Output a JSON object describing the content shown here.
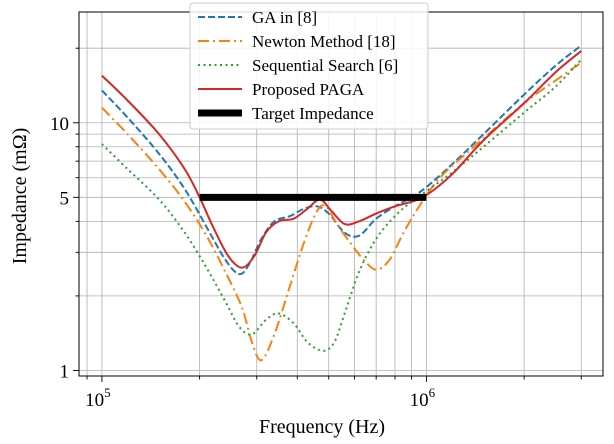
{
  "chart_data": {
    "type": "line",
    "title": "",
    "xlabel": "Frequency (Hz)",
    "ylabel": "Impedance (mΩ)",
    "xscale": "log",
    "yscale": "log",
    "xlim": [
      85000,
      3500000
    ],
    "ylim": [
      0.95,
      28
    ],
    "grid": true,
    "legend_position": "top-center",
    "xticks": [
      {
        "value": 100000,
        "base": "10",
        "exp": "5"
      },
      {
        "value": 1000000,
        "base": "10",
        "exp": "6"
      }
    ],
    "yticks": [
      {
        "value": 1,
        "label": "1"
      },
      {
        "value": 5,
        "label": "5"
      },
      {
        "value": 10,
        "label": "10"
      }
    ],
    "series": [
      {
        "name": "GA in [8]",
        "color": "#1f77b4",
        "style": "dashed",
        "points": [
          [
            100000,
            13.5
          ],
          [
            120000,
            10.5
          ],
          [
            150000,
            7.5
          ],
          [
            180000,
            5.4
          ],
          [
            210000,
            3.8
          ],
          [
            240000,
            2.8
          ],
          [
            265000,
            2.45
          ],
          [
            285000,
            2.7
          ],
          [
            310000,
            3.4
          ],
          [
            340000,
            4.0
          ],
          [
            380000,
            4.2
          ],
          [
            420000,
            4.5
          ],
          [
            460000,
            4.6
          ],
          [
            500000,
            4.3
          ],
          [
            560000,
            3.6
          ],
          [
            620000,
            3.5
          ],
          [
            700000,
            4.1
          ],
          [
            800000,
            4.6
          ],
          [
            900000,
            5.0
          ],
          [
            1000000,
            5.5
          ],
          [
            1200000,
            6.8
          ],
          [
            1500000,
            9.0
          ],
          [
            2000000,
            13.0
          ],
          [
            2500000,
            17.0
          ],
          [
            3000000,
            20.5
          ]
        ]
      },
      {
        "name": "Newton Method [18]",
        "color": "#ff7f0e",
        "style": "dashdot",
        "points": [
          [
            100000,
            11.5
          ],
          [
            120000,
            9.0
          ],
          [
            150000,
            6.5
          ],
          [
            180000,
            4.8
          ],
          [
            210000,
            3.5
          ],
          [
            240000,
            2.5
          ],
          [
            270000,
            1.8
          ],
          [
            290000,
            1.3
          ],
          [
            310000,
            1.1
          ],
          [
            340000,
            1.4
          ],
          [
            380000,
            2.2
          ],
          [
            420000,
            3.3
          ],
          [
            460000,
            4.4
          ],
          [
            490000,
            4.6
          ],
          [
            530000,
            3.9
          ],
          [
            580000,
            3.3
          ],
          [
            640000,
            2.8
          ],
          [
            700000,
            2.55
          ],
          [
            770000,
            2.8
          ],
          [
            850000,
            3.6
          ],
          [
            950000,
            4.6
          ],
          [
            1100000,
            6.0
          ],
          [
            1400000,
            8.0
          ],
          [
            2000000,
            12.0
          ],
          [
            2500000,
            14.8
          ],
          [
            3000000,
            17.5
          ]
        ]
      },
      {
        "name": "Sequential Search [6]",
        "color": "#2ca02c",
        "style": "dotted",
        "points": [
          [
            100000,
            8.2
          ],
          [
            120000,
            6.5
          ],
          [
            150000,
            4.9
          ],
          [
            180000,
            3.6
          ],
          [
            210000,
            2.6
          ],
          [
            240000,
            1.9
          ],
          [
            265000,
            1.5
          ],
          [
            290000,
            1.4
          ],
          [
            320000,
            1.6
          ],
          [
            350000,
            1.7
          ],
          [
            390000,
            1.55
          ],
          [
            430000,
            1.3
          ],
          [
            480000,
            1.2
          ],
          [
            520000,
            1.3
          ],
          [
            560000,
            1.7
          ],
          [
            620000,
            2.5
          ],
          [
            700000,
            3.4
          ],
          [
            800000,
            4.2
          ],
          [
            900000,
            4.8
          ],
          [
            1000000,
            5.3
          ],
          [
            1200000,
            6.3
          ],
          [
            1500000,
            8.0
          ],
          [
            2000000,
            11.0
          ],
          [
            2500000,
            14.0
          ],
          [
            3000000,
            18.0
          ]
        ]
      },
      {
        "name": "Proposed PAGA",
        "color": "#d62728",
        "style": "solid",
        "points": [
          [
            100000,
            15.5
          ],
          [
            120000,
            12.3
          ],
          [
            150000,
            9.0
          ],
          [
            180000,
            6.5
          ],
          [
            200000,
            5.0
          ],
          [
            220000,
            3.8
          ],
          [
            245000,
            2.9
          ],
          [
            270000,
            2.6
          ],
          [
            295000,
            2.9
          ],
          [
            320000,
            3.6
          ],
          [
            350000,
            4.0
          ],
          [
            390000,
            4.1
          ],
          [
            430000,
            4.5
          ],
          [
            470000,
            4.9
          ],
          [
            510000,
            4.4
          ],
          [
            560000,
            3.9
          ],
          [
            620000,
            4.0
          ],
          [
            700000,
            4.3
          ],
          [
            800000,
            4.6
          ],
          [
            900000,
            4.8
          ],
          [
            1000000,
            5.1
          ],
          [
            1200000,
            6.2
          ],
          [
            1500000,
            8.5
          ],
          [
            2000000,
            12.0
          ],
          [
            2500000,
            16.0
          ],
          [
            3000000,
            19.5
          ]
        ]
      },
      {
        "name": "Target Impedance",
        "color": "#000000",
        "style": "thick",
        "points": [
          [
            200000,
            5.0
          ],
          [
            1000000,
            5.0
          ]
        ]
      }
    ]
  }
}
